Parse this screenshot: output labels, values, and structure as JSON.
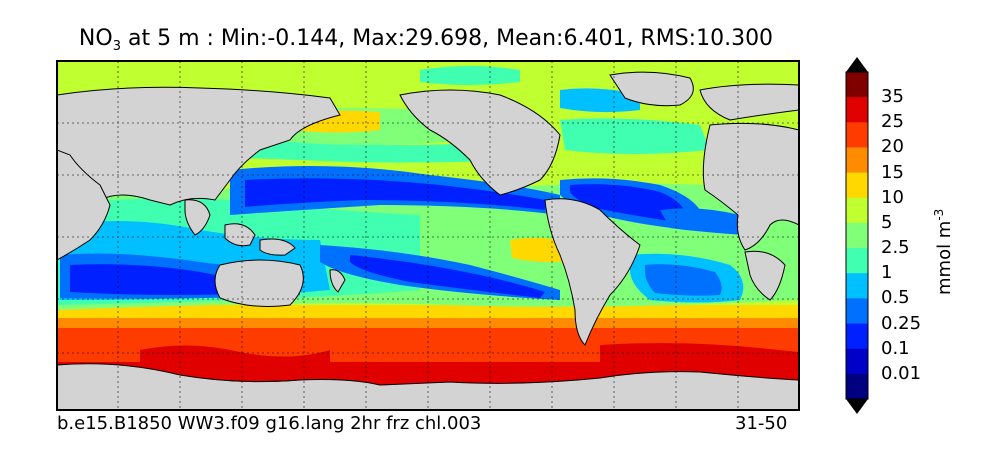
{
  "title": {
    "prefix": "NO",
    "subscript": "3",
    "rest": " at 5 m : Min:-0.144, Max:29.698, Mean:6.401, RMS:10.300"
  },
  "footer": {
    "case": "b.e15.B1850 WW3.f09 g16.lang 2hr frz chl.003",
    "years": "31-50"
  },
  "colorbar": {
    "units_base": "mmol m",
    "units_exp": "-3",
    "levels": [
      "35",
      "25",
      "20",
      "15",
      "10",
      "5",
      "2.5",
      "1",
      "0.5",
      "0.25",
      "0.1",
      "0.01"
    ],
    "colors": [
      "#000080",
      "#0000c8",
      "#0020ff",
      "#0070ff",
      "#00c0ff",
      "#40ffb0",
      "#80ff78",
      "#c0ff30",
      "#ffd800",
      "#ff8c00",
      "#ff3c00",
      "#e00000",
      "#800000"
    ],
    "land_color": "#d3d3d3"
  }
}
